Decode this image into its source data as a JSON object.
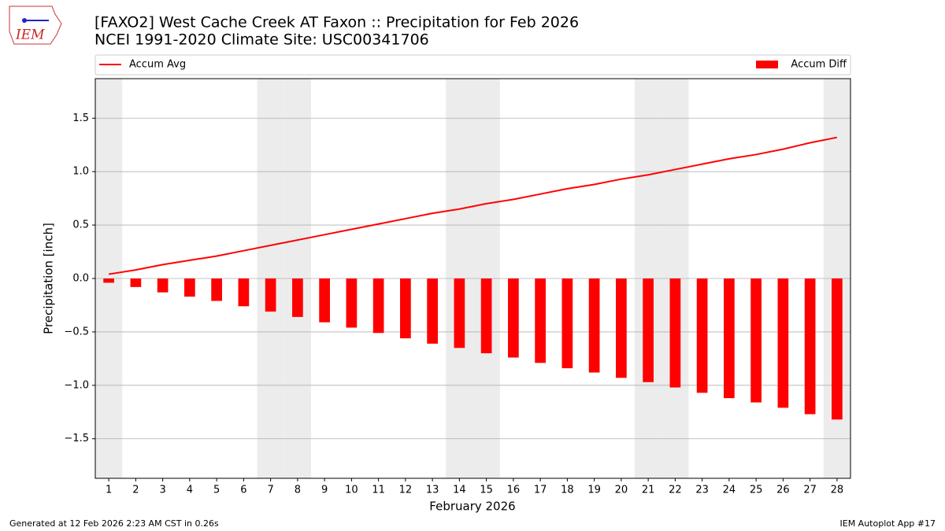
{
  "logo_text": "IEM",
  "footer": {
    "left": "Generated at 12 Feb 2026 2:23 AM CST in 0.26s",
    "right": "IEM Autoplot App #17"
  },
  "chart_data": {
    "type": "bar",
    "title": "[FAXO2] West Cache Creek  AT Faxon :: Precipitation for Feb 2026",
    "subtitle": "NCEI 1991-2020 Climate Site: USC00341706",
    "x_label": "February 2026",
    "y_label": "Precipitation [inch]",
    "x": [
      1,
      2,
      3,
      4,
      5,
      6,
      7,
      8,
      9,
      10,
      11,
      12,
      13,
      14,
      15,
      16,
      17,
      18,
      19,
      20,
      21,
      22,
      23,
      24,
      25,
      26,
      27,
      28
    ],
    "xlim": [
      0.5,
      28.5
    ],
    "xticks": [
      1,
      2,
      3,
      4,
      5,
      6,
      7,
      8,
      9,
      10,
      11,
      12,
      13,
      14,
      15,
      16,
      17,
      18,
      19,
      20,
      21,
      22,
      23,
      24,
      25,
      26,
      27,
      28
    ],
    "ylim": [
      -1.87,
      1.87
    ],
    "yticks": [
      {
        "value": -1.5,
        "label": "−1.5"
      },
      {
        "value": -1.0,
        "label": "−1.0"
      },
      {
        "value": -0.5,
        "label": "−0.5"
      },
      {
        "value": 0,
        "label": "0.0"
      },
      {
        "value": 0.5,
        "label": "0.5"
      },
      {
        "value": 1.0,
        "label": "1.0"
      },
      {
        "value": 1.5,
        "label": "1.5"
      }
    ],
    "grid": true,
    "shaded_days": [
      1,
      7,
      8,
      14,
      15,
      21,
      22,
      28
    ],
    "shade_color": "#ececec",
    "series": [
      {
        "name": "Accum Avg",
        "type": "line",
        "color": "#ff0000",
        "values": [
          0.04,
          0.08,
          0.13,
          0.17,
          0.21,
          0.26,
          0.31,
          0.36,
          0.41,
          0.46,
          0.51,
          0.56,
          0.61,
          0.65,
          0.7,
          0.74,
          0.79,
          0.84,
          0.88,
          0.93,
          0.97,
          1.02,
          1.07,
          1.12,
          1.16,
          1.21,
          1.27,
          1.32
        ]
      },
      {
        "name": "Accum Diff",
        "type": "bar",
        "color": "#ff0000",
        "values": [
          -0.04,
          -0.08,
          -0.13,
          -0.17,
          -0.21,
          -0.26,
          -0.31,
          -0.36,
          -0.41,
          -0.46,
          -0.51,
          -0.56,
          -0.61,
          -0.65,
          -0.7,
          -0.74,
          -0.79,
          -0.84,
          -0.88,
          -0.93,
          -0.97,
          -1.02,
          -1.07,
          -1.12,
          -1.16,
          -1.21,
          -1.27,
          -1.32
        ]
      }
    ]
  }
}
